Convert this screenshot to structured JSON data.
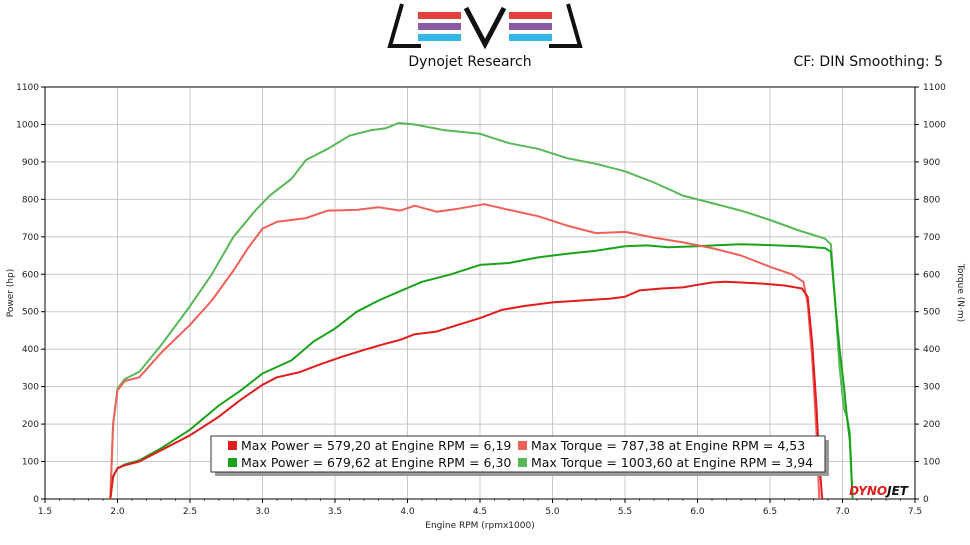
{
  "header": {
    "subtitle": "Dynojet Research",
    "settings": "CF: DIN Smoothing: 5"
  },
  "brand": {
    "logo_colors": [
      "#e2403a",
      "#8a5aa2",
      "#35b6e8"
    ],
    "watermark_part1": "DYNO",
    "watermark_part2": "JET"
  },
  "chart_data": {
    "type": "line",
    "xlabel": "Engine RPM (rpmx1000)",
    "ylabel_left": "Power (hp)",
    "ylabel_right": "Torque (N·m)",
    "xlim": [
      1.5,
      7.5
    ],
    "ylim": [
      0,
      1100
    ],
    "x_ticks": [
      "1.5",
      "2.0",
      "2.5",
      "3.0",
      "3.5",
      "4.0",
      "4.5",
      "5.0",
      "5.5",
      "6.0",
      "6.5",
      "7.0",
      "7.5"
    ],
    "y_ticks": [
      "0",
      "100",
      "200",
      "300",
      "400",
      "500",
      "600",
      "700",
      "800",
      "900",
      "1000",
      "1100"
    ],
    "grid": true,
    "series": [
      {
        "name": "Max Power = 579,20 at Engine RPM = 6,19",
        "color": "#e01c1c",
        "points": [
          [
            1.95,
            0
          ],
          [
            1.97,
            60
          ],
          [
            2.0,
            82
          ],
          [
            2.05,
            90
          ],
          [
            2.15,
            100
          ],
          [
            2.3,
            130
          ],
          [
            2.5,
            170
          ],
          [
            2.7,
            220
          ],
          [
            2.85,
            265
          ],
          [
            3.0,
            305
          ],
          [
            3.1,
            325
          ],
          [
            3.25,
            338
          ],
          [
            3.4,
            360
          ],
          [
            3.55,
            380
          ],
          [
            3.7,
            398
          ],
          [
            3.85,
            415
          ],
          [
            3.95,
            425
          ],
          [
            4.05,
            440
          ],
          [
            4.2,
            447
          ],
          [
            4.35,
            465
          ],
          [
            4.5,
            483
          ],
          [
            4.65,
            505
          ],
          [
            4.8,
            515
          ],
          [
            5.0,
            525
          ],
          [
            5.2,
            530
          ],
          [
            5.4,
            535
          ],
          [
            5.5,
            540
          ],
          [
            5.6,
            557
          ],
          [
            5.75,
            562
          ],
          [
            5.9,
            565
          ],
          [
            6.0,
            572
          ],
          [
            6.1,
            578
          ],
          [
            6.19,
            580
          ],
          [
            6.3,
            578
          ],
          [
            6.45,
            575
          ],
          [
            6.6,
            570
          ],
          [
            6.72,
            562
          ],
          [
            6.76,
            540
          ],
          [
            6.79,
            420
          ],
          [
            6.82,
            250
          ],
          [
            6.84,
            100
          ],
          [
            6.86,
            0
          ]
        ]
      },
      {
        "name": "Max Torque = 787,38 at Engine RPM = 4,53",
        "color": "#f06058",
        "points": [
          [
            1.95,
            0
          ],
          [
            1.97,
            200
          ],
          [
            2.0,
            290
          ],
          [
            2.05,
            315
          ],
          [
            2.15,
            325
          ],
          [
            2.3,
            390
          ],
          [
            2.5,
            465
          ],
          [
            2.65,
            530
          ],
          [
            2.8,
            610
          ],
          [
            2.9,
            670
          ],
          [
            3.0,
            722
          ],
          [
            3.1,
            740
          ],
          [
            3.3,
            750
          ],
          [
            3.45,
            770
          ],
          [
            3.65,
            772
          ],
          [
            3.8,
            779
          ],
          [
            3.95,
            770
          ],
          [
            4.05,
            783
          ],
          [
            4.2,
            767
          ],
          [
            4.35,
            775
          ],
          [
            4.53,
            787
          ],
          [
            4.7,
            772
          ],
          [
            4.9,
            755
          ],
          [
            5.1,
            730
          ],
          [
            5.3,
            710
          ],
          [
            5.5,
            713
          ],
          [
            5.7,
            698
          ],
          [
            5.9,
            685
          ],
          [
            6.1,
            670
          ],
          [
            6.3,
            650
          ],
          [
            6.5,
            620
          ],
          [
            6.65,
            600
          ],
          [
            6.73,
            580
          ],
          [
            6.76,
            520
          ],
          [
            6.79,
            380
          ],
          [
            6.82,
            180
          ],
          [
            6.84,
            0
          ]
        ]
      },
      {
        "name": "Max Power = 679,62 at Engine RPM = 6,30",
        "color": "#1aa31a",
        "points": [
          [
            1.95,
            0
          ],
          [
            1.97,
            60
          ],
          [
            2.0,
            82
          ],
          [
            2.05,
            92
          ],
          [
            2.15,
            103
          ],
          [
            2.3,
            135
          ],
          [
            2.5,
            185
          ],
          [
            2.7,
            250
          ],
          [
            2.85,
            290
          ],
          [
            3.0,
            335
          ],
          [
            3.2,
            370
          ],
          [
            3.35,
            420
          ],
          [
            3.5,
            455
          ],
          [
            3.65,
            500
          ],
          [
            3.8,
            530
          ],
          [
            3.95,
            555
          ],
          [
            4.1,
            580
          ],
          [
            4.3,
            600
          ],
          [
            4.5,
            625
          ],
          [
            4.7,
            630
          ],
          [
            4.9,
            645
          ],
          [
            5.1,
            655
          ],
          [
            5.3,
            663
          ],
          [
            5.5,
            675
          ],
          [
            5.65,
            677
          ],
          [
            5.8,
            672
          ],
          [
            6.0,
            675
          ],
          [
            6.15,
            678
          ],
          [
            6.3,
            680
          ],
          [
            6.5,
            678
          ],
          [
            6.7,
            675
          ],
          [
            6.88,
            670
          ],
          [
            6.92,
            660
          ],
          [
            6.95,
            520
          ],
          [
            6.98,
            400
          ],
          [
            7.01,
            300
          ],
          [
            7.03,
            220
          ],
          [
            7.05,
            160
          ],
          [
            7.07,
            0
          ]
        ]
      },
      {
        "name": "Max Torque = 1003,60 at Engine RPM = 3,94",
        "color": "#58b858",
        "points": [
          [
            1.95,
            0
          ],
          [
            1.97,
            200
          ],
          [
            2.0,
            295
          ],
          [
            2.05,
            320
          ],
          [
            2.15,
            340
          ],
          [
            2.3,
            410
          ],
          [
            2.5,
            515
          ],
          [
            2.65,
            600
          ],
          [
            2.8,
            700
          ],
          [
            2.95,
            770
          ],
          [
            3.05,
            810
          ],
          [
            3.2,
            855
          ],
          [
            3.3,
            905
          ],
          [
            3.45,
            935
          ],
          [
            3.6,
            970
          ],
          [
            3.75,
            985
          ],
          [
            3.85,
            990
          ],
          [
            3.94,
            1004
          ],
          [
            4.05,
            1000
          ],
          [
            4.25,
            985
          ],
          [
            4.5,
            975
          ],
          [
            4.7,
            950
          ],
          [
            4.9,
            935
          ],
          [
            5.1,
            910
          ],
          [
            5.3,
            895
          ],
          [
            5.5,
            875
          ],
          [
            5.7,
            845
          ],
          [
            5.9,
            810
          ],
          [
            6.1,
            790
          ],
          [
            6.3,
            770
          ],
          [
            6.5,
            745
          ],
          [
            6.7,
            717
          ],
          [
            6.88,
            695
          ],
          [
            6.92,
            680
          ],
          [
            6.95,
            520
          ],
          [
            6.98,
            350
          ],
          [
            7.01,
            240
          ],
          [
            7.03,
            220
          ],
          [
            7.05,
            180
          ],
          [
            7.07,
            0
          ]
        ]
      }
    ]
  }
}
